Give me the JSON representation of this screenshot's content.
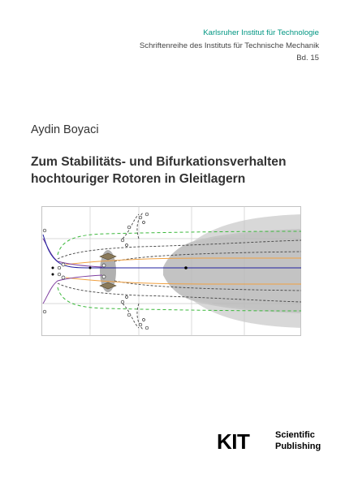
{
  "series": {
    "institution": "Karlsruher Institut für Technologie",
    "name": "Schriftenreihe des Instituts für Technische Mechanik",
    "volume": "Bd. 15"
  },
  "author": "Aydin Boyaci",
  "title": {
    "line1": "Zum Stabilitäts- und Bifurkationsverhalten",
    "line2": "hochtouriger Rotoren in Gleitlagern"
  },
  "publisher": {
    "logo_text": "KIT",
    "line1": "Scientific",
    "line2": "Publishing"
  },
  "colors": {
    "kit_green": "#009682",
    "text": "#333333",
    "grid": "#cccccc",
    "green_dashed": "#3cb83c",
    "black_dashed": "#444444",
    "orange": "#f0a040",
    "blue": "#2020a0",
    "purple": "#8040a0",
    "gray_cloud": "#a8a8a8",
    "olive_marker": "#8a7a5a"
  }
}
